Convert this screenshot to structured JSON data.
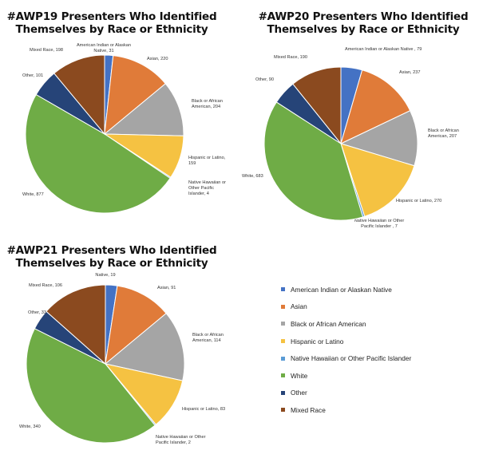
{
  "colors": {
    "American Indian or Alaskan Native": "#4472c4",
    "Asian": "#e07b39",
    "Black or African American": "#a5a5a5",
    "Hispanic or Latino": "#f5c242",
    "Native Hawaiian or Other Pacific Islander": "#5b9bd5",
    "White": "#6fac46",
    "Other": "#264478",
    "Mixed Race": "#8b4a1f"
  },
  "legend": {
    "items": [
      "American Indian or Alaskan Native",
      "Asian",
      "Black or African American",
      "Hispanic or Latino",
      "Native Hawaiian or Other Pacific Islander",
      "White",
      "Other",
      "Mixed Race"
    ]
  },
  "chart_data": [
    {
      "type": "pie",
      "title": "#AWP19 Presenters Who Identified Themselves by Race or Ethnicity",
      "title_lines": [
        "#AWP19 Presenters Who Identified",
        "Themselves by Race or Ethnicity"
      ],
      "categories": [
        "American Indian or Alaskan Native",
        "Asian",
        "Black or African American",
        "Hispanic or Latino",
        "Native Hawaiian or Other Pacific Islander",
        "White",
        "Other",
        "Mixed Race"
      ],
      "values": [
        31,
        220,
        204,
        159,
        4,
        877,
        101,
        198
      ],
      "data_labels": [
        [
          "American Indian or Alaskan",
          "Native, 31"
        ],
        [
          "Asian, 220"
        ],
        [
          "Black or African",
          "American, 204"
        ],
        [
          "Hispanic or Latino,",
          "159"
        ],
        [
          "Native Hawaiian or",
          "Other Pacific",
          "Islander, 4"
        ],
        [
          "White, 877"
        ],
        [
          "Other, 101"
        ],
        [
          "Mixed Race, 198"
        ]
      ]
    },
    {
      "type": "pie",
      "title": "#AWP20 Presenters Who Identified Themselves by Race or Ethnicity",
      "title_lines": [
        "#AWP20 Presenters Who Identified",
        "Themselves by Race or Ethnicity"
      ],
      "categories": [
        "American Indian or Alaskan Native",
        "Asian",
        "Black or African American",
        "Hispanic or Latino",
        "Native Hawaiian or Other Pacific Islander",
        "White",
        "Other",
        "Mixed Race"
      ],
      "values": [
        79,
        237,
        207,
        270,
        7,
        683,
        90,
        190
      ],
      "data_labels": [
        [
          "American Indian or Alaskan Native , 79"
        ],
        [
          "Asian, 237"
        ],
        [
          "Black or African",
          "American, 207"
        ],
        [
          "Hispanic or Latino, 270"
        ],
        [
          "Native Hawaiian or Other",
          "Pacific Islander , 7"
        ],
        [
          "White, 683"
        ],
        [
          "Other, 90"
        ],
        [
          "Mixed Race, 190"
        ]
      ]
    },
    {
      "type": "pie",
      "title": "#AWP21 Presenters Who Identified Themselves by Race or Ethnicity",
      "title_lines": [
        "#AWP21 Presenters Who Identified",
        "Themselves by Race or Ethnicity"
      ],
      "categories": [
        "American Indian or Alaskan Native",
        "Asian",
        "Black or African American",
        "Hispanic or Latino",
        "Native Hawaiian or Other Pacific Islander",
        "White",
        "Other",
        "Mixed Race"
      ],
      "values": [
        19,
        91,
        114,
        83,
        2,
        340,
        33,
        106
      ],
      "data_labels": [
        [
          "Native, 19"
        ],
        [
          "Asian, 91"
        ],
        [
          "Black or African",
          "American, 114"
        ],
        [
          "Hispanic or Latino, 83"
        ],
        [
          "Native Hawaiian or Other",
          "Pacific Islander, 2"
        ],
        [
          "White, 340"
        ],
        [
          "Other, 33"
        ],
        [
          "Mixed Race, 106"
        ]
      ]
    }
  ]
}
